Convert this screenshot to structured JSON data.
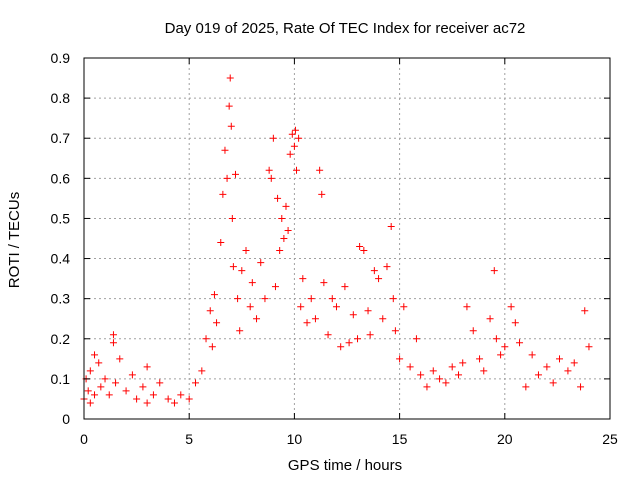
{
  "chart_data": {
    "type": "scatter",
    "title": "Day 019 of 2025, Rate Of TEC Index for receiver ac72",
    "xlabel": "GPS time / hours",
    "ylabel": "ROTI / TECUs",
    "xlim": [
      0,
      25
    ],
    "ylim": [
      0,
      0.9
    ],
    "x_ticks": [
      0,
      5,
      10,
      15,
      20,
      25
    ],
    "x_tick_labels": [
      "0",
      "5",
      "10",
      "15",
      "20",
      "25"
    ],
    "y_ticks": [
      0,
      0.1,
      0.2,
      0.3,
      0.4,
      0.5,
      0.6,
      0.7,
      0.8,
      0.9
    ],
    "y_tick_labels": [
      "0",
      "0.1",
      "0.2",
      "0.3",
      "0.4",
      "0.5",
      "0.6",
      "0.7",
      "0.8",
      "0.9"
    ],
    "grid": true,
    "marker": "plus",
    "color": "#ff0000",
    "x": [
      0.0,
      0.1,
      0.2,
      0.3,
      0.3,
      0.5,
      0.5,
      0.7,
      0.8,
      1.0,
      1.2,
      1.4,
      1.4,
      1.5,
      1.7,
      2.0,
      2.3,
      2.5,
      2.8,
      3.0,
      3.0,
      3.3,
      3.6,
      4.0,
      4.3,
      4.6,
      5.0,
      5.3,
      5.6,
      5.8,
      6.0,
      6.1,
      6.2,
      6.3,
      6.5,
      6.6,
      6.7,
      6.8,
      6.9,
      6.95,
      7.0,
      7.05,
      7.1,
      7.2,
      7.3,
      7.4,
      7.5,
      7.7,
      7.9,
      8.0,
      8.2,
      8.4,
      8.6,
      8.8,
      8.9,
      9.0,
      9.1,
      9.2,
      9.3,
      9.4,
      9.5,
      9.6,
      9.7,
      9.8,
      9.9,
      10.0,
      10.05,
      10.1,
      10.2,
      10.3,
      10.4,
      10.6,
      10.8,
      11.0,
      11.2,
      11.3,
      11.4,
      11.6,
      11.8,
      12.0,
      12.2,
      12.4,
      12.6,
      12.8,
      13.0,
      13.1,
      13.3,
      13.5,
      13.6,
      13.8,
      14.0,
      14.2,
      14.4,
      14.6,
      14.7,
      14.8,
      15.0,
      15.2,
      15.5,
      15.8,
      16.0,
      16.3,
      16.6,
      16.9,
      17.2,
      17.5,
      17.8,
      18.0,
      18.2,
      18.5,
      18.8,
      19.0,
      19.3,
      19.5,
      19.6,
      19.8,
      20.0,
      20.3,
      20.5,
      20.7,
      21.0,
      21.3,
      21.6,
      22.0,
      22.3,
      22.6,
      23.0,
      23.3,
      23.6,
      23.8,
      24.0
    ],
    "y": [
      0.05,
      0.1,
      0.07,
      0.12,
      0.04,
      0.16,
      0.06,
      0.14,
      0.08,
      0.1,
      0.06,
      0.21,
      0.19,
      0.09,
      0.15,
      0.07,
      0.11,
      0.05,
      0.08,
      0.13,
      0.04,
      0.06,
      0.09,
      0.05,
      0.04,
      0.06,
      0.05,
      0.09,
      0.12,
      0.2,
      0.27,
      0.18,
      0.31,
      0.24,
      0.44,
      0.56,
      0.67,
      0.6,
      0.78,
      0.85,
      0.73,
      0.5,
      0.38,
      0.61,
      0.3,
      0.22,
      0.37,
      0.42,
      0.28,
      0.34,
      0.25,
      0.39,
      0.3,
      0.62,
      0.6,
      0.7,
      0.33,
      0.55,
      0.42,
      0.5,
      0.45,
      0.53,
      0.47,
      0.66,
      0.71,
      0.68,
      0.72,
      0.62,
      0.7,
      0.28,
      0.35,
      0.24,
      0.3,
      0.25,
      0.62,
      0.56,
      0.34,
      0.21,
      0.3,
      0.28,
      0.18,
      0.33,
      0.19,
      0.26,
      0.2,
      0.43,
      0.42,
      0.27,
      0.21,
      0.37,
      0.35,
      0.25,
      0.38,
      0.48,
      0.3,
      0.22,
      0.15,
      0.28,
      0.13,
      0.2,
      0.11,
      0.08,
      0.12,
      0.1,
      0.09,
      0.13,
      0.11,
      0.14,
      0.28,
      0.22,
      0.15,
      0.12,
      0.25,
      0.37,
      0.2,
      0.16,
      0.18,
      0.28,
      0.24,
      0.19,
      0.08,
      0.16,
      0.11,
      0.13,
      0.09,
      0.15,
      0.12,
      0.14,
      0.08,
      0.27,
      0.18
    ]
  }
}
